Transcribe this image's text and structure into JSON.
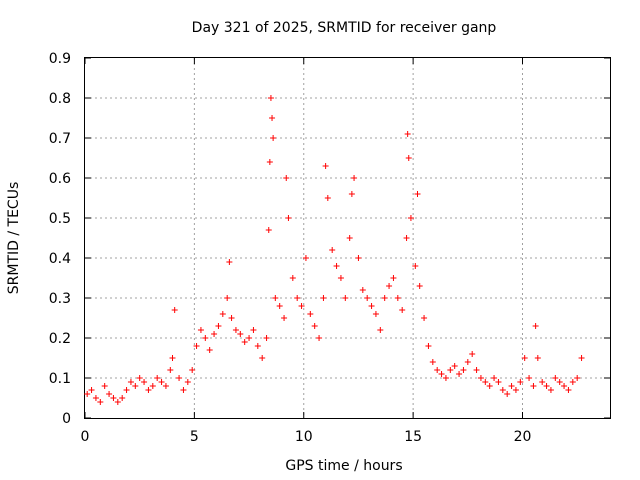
{
  "chart_data": {
    "type": "scatter",
    "title": "Day 321 of 2025, SRMTID for receiver ganp",
    "xlabel": "GPS time / hours",
    "ylabel": "SRMTID / TECUs",
    "xlim": [
      0,
      24
    ],
    "ylim": [
      0,
      0.9
    ],
    "xticks": [
      0,
      5,
      10,
      15,
      20
    ],
    "yticks": [
      0,
      0.1,
      0.2,
      0.3,
      0.4,
      0.5,
      0.6,
      0.7,
      0.8,
      0.9
    ],
    "grid": true,
    "marker": "+",
    "color": "#ff0000",
    "series": [
      {
        "name": "SRMTID",
        "x": [
          0.1,
          0.3,
          0.5,
          0.7,
          0.9,
          1.1,
          1.3,
          1.5,
          1.7,
          1.9,
          2.1,
          2.3,
          2.5,
          2.7,
          2.9,
          3.1,
          3.3,
          3.5,
          3.7,
          3.9,
          4.0,
          4.1,
          4.3,
          4.5,
          4.7,
          4.9,
          5.1,
          5.3,
          5.5,
          5.7,
          5.9,
          6.1,
          6.3,
          6.5,
          6.6,
          6.7,
          6.9,
          7.1,
          7.3,
          7.5,
          7.7,
          7.9,
          8.1,
          8.3,
          8.4,
          8.45,
          8.5,
          8.55,
          8.6,
          8.7,
          8.9,
          9.1,
          9.2,
          9.3,
          9.5,
          9.7,
          9.9,
          10.1,
          10.3,
          10.5,
          10.7,
          10.9,
          11.0,
          11.1,
          11.3,
          11.5,
          11.7,
          11.9,
          12.1,
          12.2,
          12.3,
          12.5,
          12.7,
          12.9,
          13.1,
          13.3,
          13.5,
          13.7,
          13.9,
          14.1,
          14.3,
          14.5,
          14.7,
          14.75,
          14.8,
          14.9,
          15.1,
          15.2,
          15.3,
          15.5,
          15.7,
          15.9,
          16.1,
          16.3,
          16.5,
          16.7,
          16.9,
          17.1,
          17.3,
          17.5,
          17.7,
          17.9,
          18.1,
          18.3,
          18.5,
          18.7,
          18.9,
          19.1,
          19.3,
          19.5,
          19.7,
          19.9,
          20.1,
          20.3,
          20.5,
          20.6,
          20.7,
          20.9,
          21.1,
          21.3,
          21.5,
          21.7,
          21.9,
          22.1,
          22.3,
          22.5,
          22.7
        ],
        "y": [
          0.06,
          0.07,
          0.05,
          0.04,
          0.08,
          0.06,
          0.05,
          0.04,
          0.05,
          0.07,
          0.09,
          0.08,
          0.1,
          0.09,
          0.07,
          0.08,
          0.1,
          0.09,
          0.08,
          0.12,
          0.15,
          0.27,
          0.1,
          0.07,
          0.09,
          0.12,
          0.18,
          0.22,
          0.2,
          0.17,
          0.21,
          0.23,
          0.26,
          0.3,
          0.39,
          0.25,
          0.22,
          0.21,
          0.19,
          0.2,
          0.22,
          0.18,
          0.15,
          0.2,
          0.47,
          0.64,
          0.8,
          0.75,
          0.7,
          0.3,
          0.28,
          0.25,
          0.6,
          0.5,
          0.35,
          0.3,
          0.28,
          0.4,
          0.26,
          0.23,
          0.2,
          0.3,
          0.63,
          0.55,
          0.42,
          0.38,
          0.35,
          0.3,
          0.45,
          0.56,
          0.6,
          0.4,
          0.32,
          0.3,
          0.28,
          0.26,
          0.22,
          0.3,
          0.33,
          0.35,
          0.3,
          0.27,
          0.45,
          0.71,
          0.65,
          0.5,
          0.38,
          0.56,
          0.33,
          0.25,
          0.18,
          0.14,
          0.12,
          0.11,
          0.1,
          0.12,
          0.13,
          0.11,
          0.12,
          0.14,
          0.16,
          0.12,
          0.1,
          0.09,
          0.08,
          0.1,
          0.09,
          0.07,
          0.06,
          0.08,
          0.07,
          0.09,
          0.15,
          0.1,
          0.08,
          0.23,
          0.15,
          0.09,
          0.08,
          0.07,
          0.1,
          0.09,
          0.08,
          0.07,
          0.09,
          0.1,
          0.15
        ]
      }
    ]
  }
}
